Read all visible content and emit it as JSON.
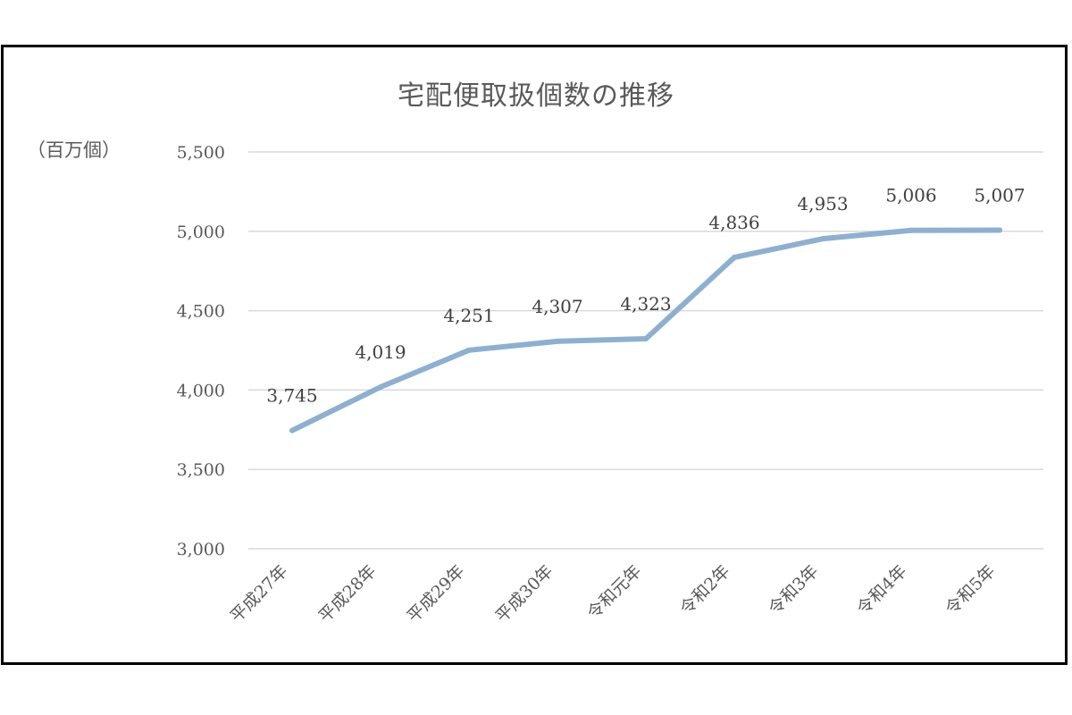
{
  "chart_data": {
    "type": "line",
    "title": "宅配便取扱個数の推移",
    "ylabel": "（百万個）",
    "categories": [
      "平成27年",
      "平成28年",
      "平成29年",
      "平成30年",
      "令和元年",
      "令和2年",
      "令和3年",
      "令和4年",
      "令和5年"
    ],
    "series": [
      {
        "values": [
          3745,
          4019,
          4251,
          4307,
          4323,
          4836,
          4953,
          5006,
          5007
        ]
      }
    ],
    "data_labels": [
      "3,745",
      "4,019",
      "4,251",
      "4,307",
      "4,323",
      "4,836",
      "4,953",
      "5,006",
      "5,007"
    ],
    "yticks": [
      "3,000",
      "3,500",
      "4,000",
      "4,500",
      "5,000",
      "5,500"
    ],
    "ylim": [
      3000,
      5500
    ],
    "grid": true,
    "legend": "none",
    "line_color": "#8eb0d0",
    "grid_color": "#d9d9d9"
  }
}
